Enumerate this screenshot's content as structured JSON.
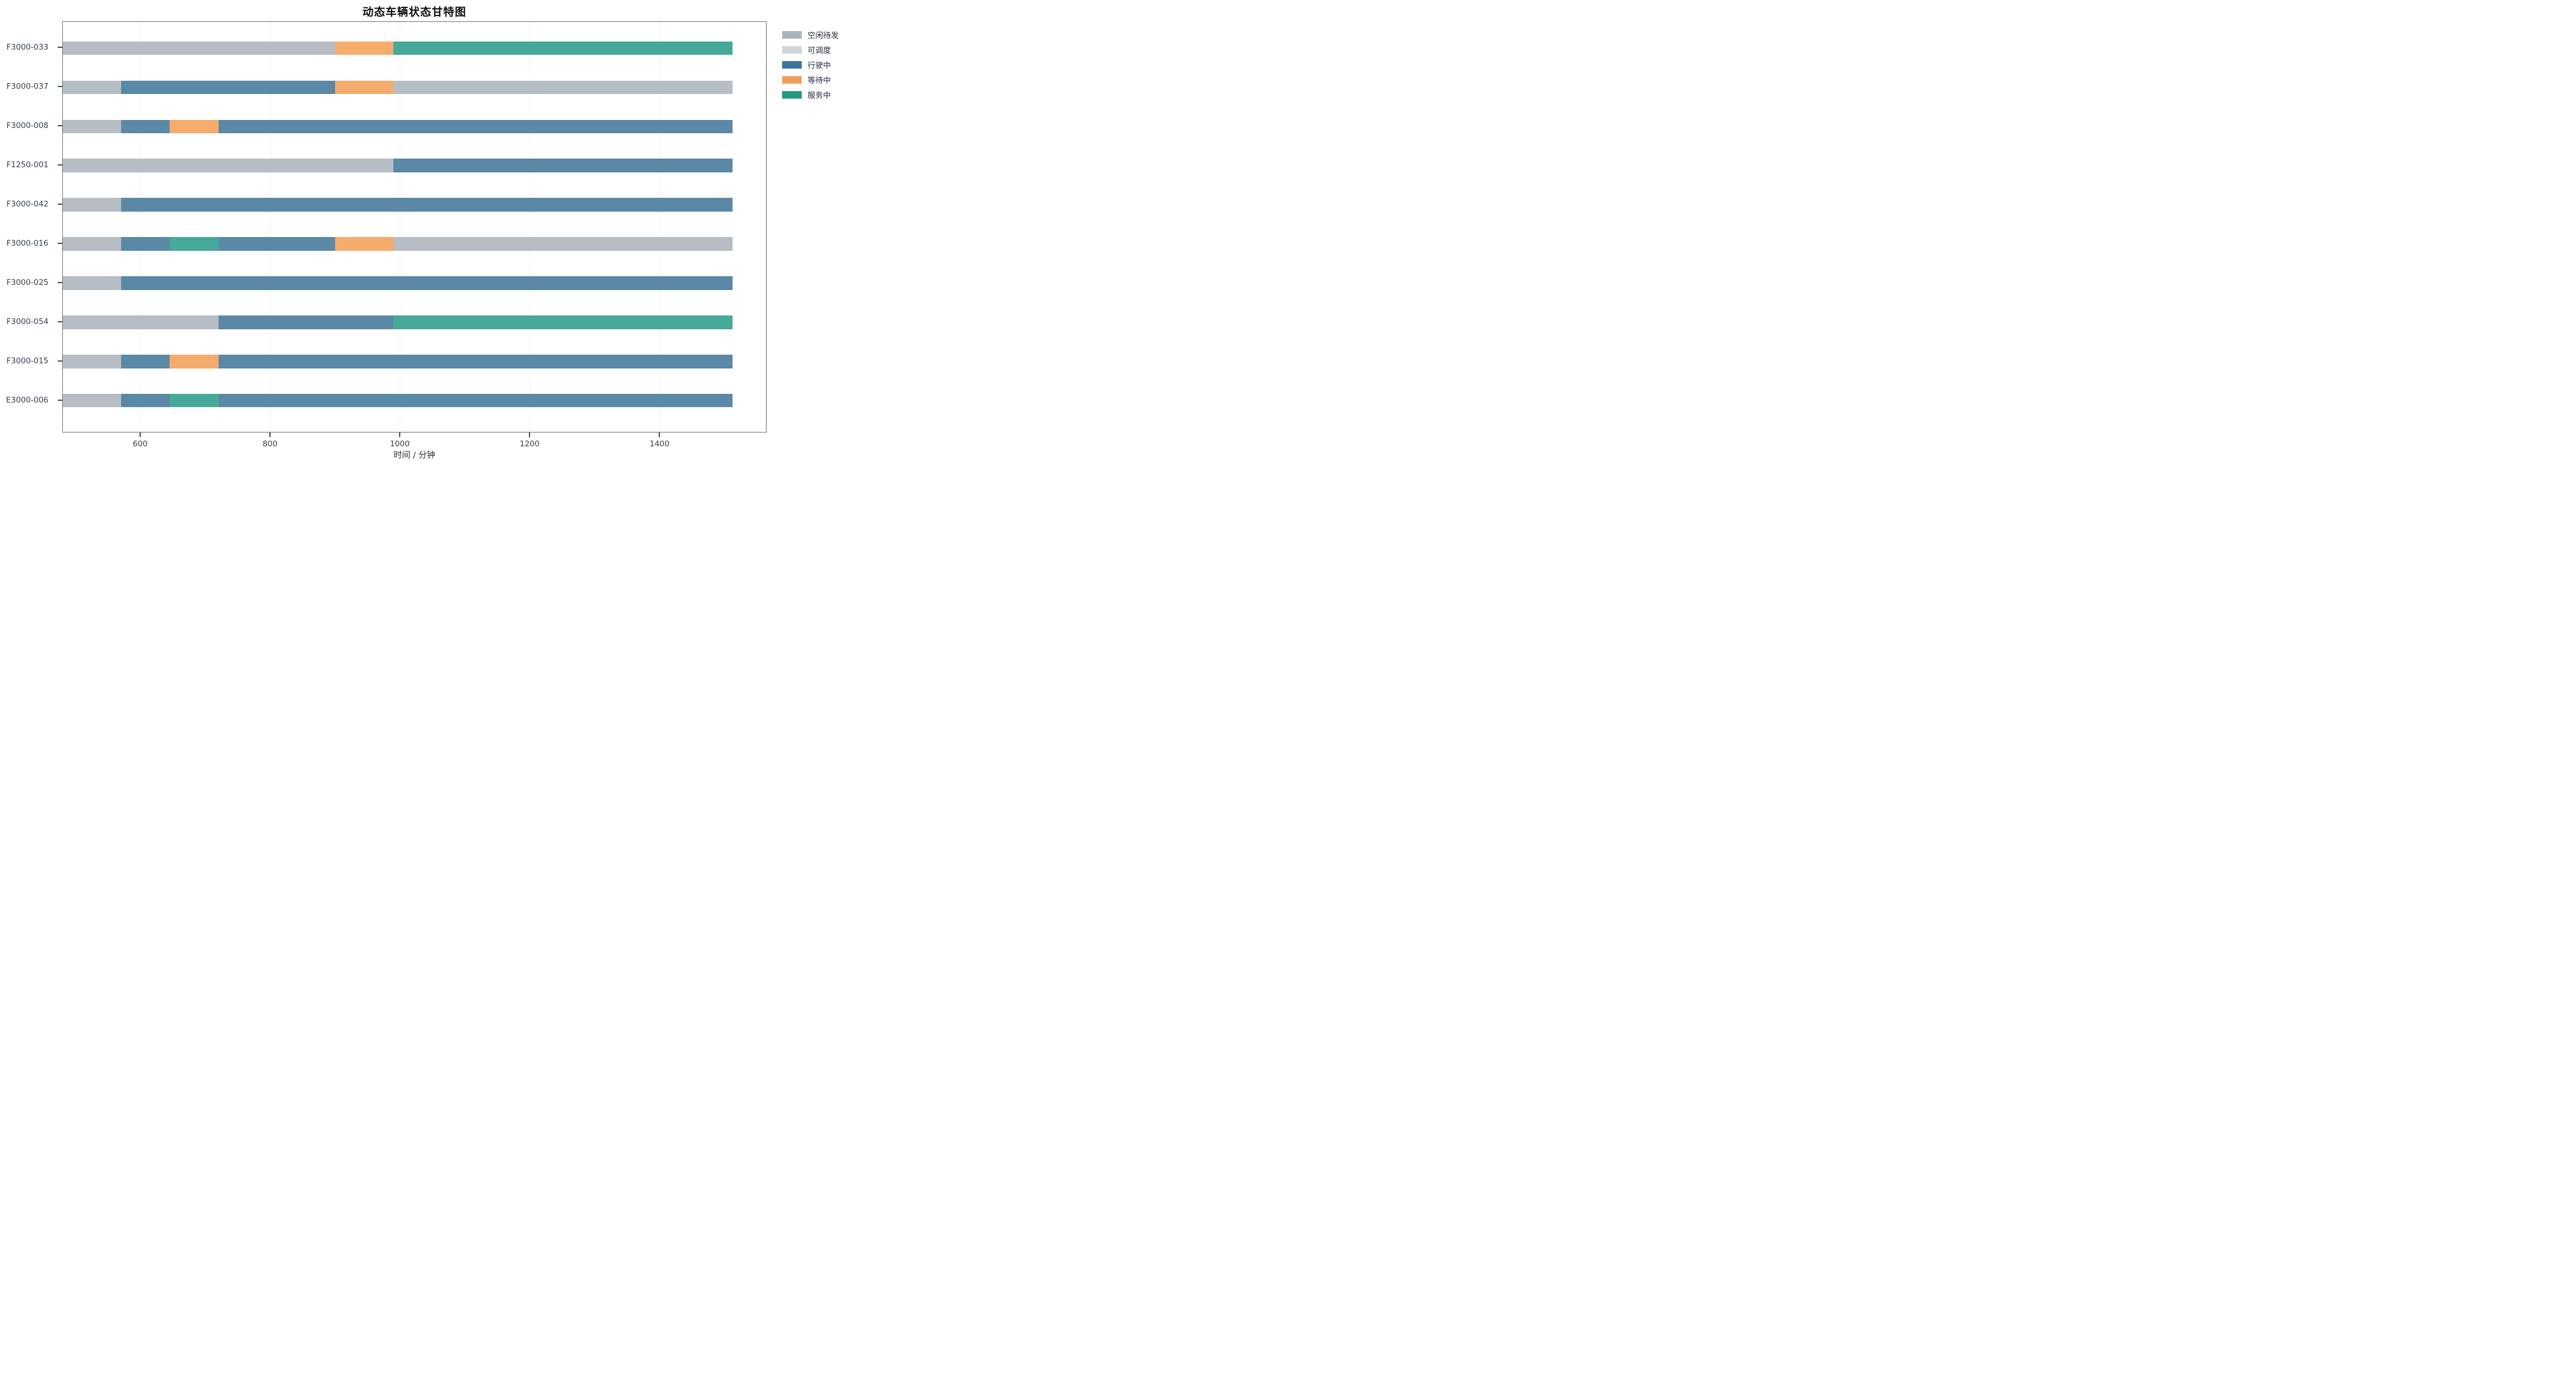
{
  "chart_data": {
    "type": "gantt",
    "title": "动态车辆状态甘特图",
    "xlabel": "时间 / 分钟",
    "xlim": [
      480,
      1565
    ],
    "xticks": [
      600,
      800,
      1000,
      1200,
      1400
    ],
    "grid": "vertical-dashed",
    "legend_position": "outside-upper-right",
    "axis_border_color": "#626e7c",
    "statuses": [
      {
        "name": "空闲待发",
        "legend_color": "#a9b3bc",
        "bar_color": "#b6bdc5"
      },
      {
        "name": "可调度",
        "legend_color": "#ced4da",
        "bar_color": "#d7dbdf"
      },
      {
        "name": "行驶中",
        "legend_color": "#3d7599",
        "bar_color": "#5a88a6"
      },
      {
        "name": "等待中",
        "legend_color": "#f09f5a",
        "bar_color": "#f5ab6c"
      },
      {
        "name": "服务中",
        "legend_color": "#23997f",
        "bar_color": "#46a99a"
      }
    ],
    "rows": [
      {
        "vehicle": "F3000-033",
        "segments": [
          {
            "status": "空闲待发",
            "start": 480,
            "end": 900
          },
          {
            "status": "等待中",
            "start": 900,
            "end": 990
          },
          {
            "status": "服务中",
            "start": 990,
            "end": 1513
          }
        ]
      },
      {
        "vehicle": "F3000-037",
        "segments": [
          {
            "status": "空闲待发",
            "start": 480,
            "end": 570
          },
          {
            "status": "行驶中",
            "start": 570,
            "end": 900
          },
          {
            "status": "等待中",
            "start": 900,
            "end": 990
          },
          {
            "status": "空闲待发",
            "start": 990,
            "end": 1513
          }
        ]
      },
      {
        "vehicle": "F3000-008",
        "segments": [
          {
            "status": "空闲待发",
            "start": 480,
            "end": 570
          },
          {
            "status": "行驶中",
            "start": 570,
            "end": 645
          },
          {
            "status": "等待中",
            "start": 645,
            "end": 720
          },
          {
            "status": "行驶中",
            "start": 720,
            "end": 1513
          }
        ]
      },
      {
        "vehicle": "F1250-001",
        "segments": [
          {
            "status": "空闲待发",
            "start": 480,
            "end": 990
          },
          {
            "status": "行驶中",
            "start": 990,
            "end": 1513
          }
        ]
      },
      {
        "vehicle": "F3000-042",
        "segments": [
          {
            "status": "空闲待发",
            "start": 480,
            "end": 570
          },
          {
            "status": "行驶中",
            "start": 570,
            "end": 1513
          }
        ]
      },
      {
        "vehicle": "F3000-016",
        "segments": [
          {
            "status": "空闲待发",
            "start": 480,
            "end": 570
          },
          {
            "status": "行驶中",
            "start": 570,
            "end": 645
          },
          {
            "status": "服务中",
            "start": 645,
            "end": 720
          },
          {
            "status": "行驶中",
            "start": 720,
            "end": 900
          },
          {
            "status": "等待中",
            "start": 900,
            "end": 990
          },
          {
            "status": "空闲待发",
            "start": 990,
            "end": 1513
          }
        ]
      },
      {
        "vehicle": "F3000-025",
        "segments": [
          {
            "status": "空闲待发",
            "start": 480,
            "end": 570
          },
          {
            "status": "行驶中",
            "start": 570,
            "end": 1513
          }
        ]
      },
      {
        "vehicle": "F3000-054",
        "segments": [
          {
            "status": "空闲待发",
            "start": 480,
            "end": 720
          },
          {
            "status": "行驶中",
            "start": 720,
            "end": 990
          },
          {
            "status": "服务中",
            "start": 990,
            "end": 1513
          }
        ]
      },
      {
        "vehicle": "F3000-015",
        "segments": [
          {
            "status": "空闲待发",
            "start": 480,
            "end": 570
          },
          {
            "status": "行驶中",
            "start": 570,
            "end": 645
          },
          {
            "status": "等待中",
            "start": 645,
            "end": 720
          },
          {
            "status": "行驶中",
            "start": 720,
            "end": 1513
          }
        ]
      },
      {
        "vehicle": "E3000-006",
        "segments": [
          {
            "status": "空闲待发",
            "start": 480,
            "end": 570
          },
          {
            "status": "行驶中",
            "start": 570,
            "end": 645
          },
          {
            "status": "服务中",
            "start": 645,
            "end": 720
          },
          {
            "status": "行驶中",
            "start": 720,
            "end": 1513
          }
        ]
      }
    ]
  }
}
